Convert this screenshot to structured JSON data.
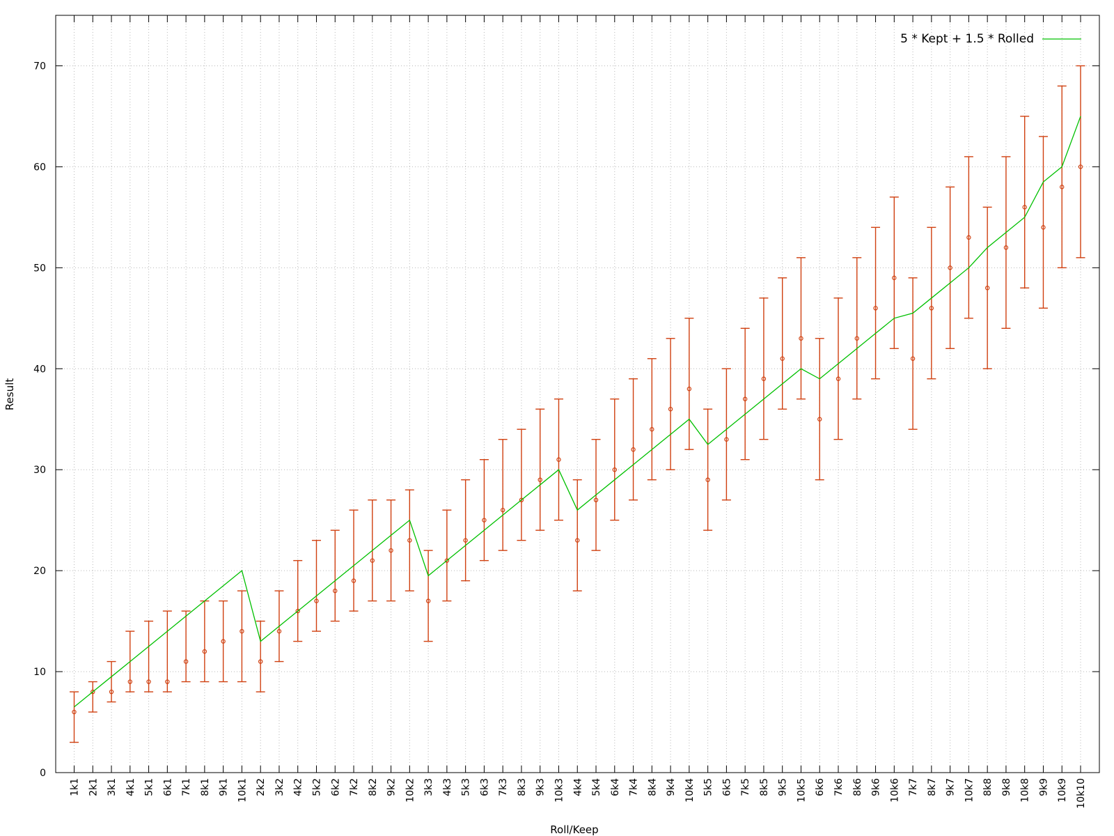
{
  "chart_data": {
    "type": "line",
    "xlabel": "Roll/Keep",
    "ylabel": "Result",
    "ylim": [
      0,
      75
    ],
    "yticks": [
      0,
      10,
      20,
      30,
      40,
      50,
      60,
      70
    ],
    "grid": true,
    "legend_position": "top-right",
    "categories": [
      "1k1",
      "2k1",
      "3k1",
      "4k1",
      "5k1",
      "6k1",
      "7k1",
      "8k1",
      "9k1",
      "10k1",
      "2k2",
      "3k2",
      "4k2",
      "5k2",
      "6k2",
      "7k2",
      "8k2",
      "9k2",
      "10k2",
      "3k3",
      "4k3",
      "5k3",
      "6k3",
      "7k3",
      "8k3",
      "9k3",
      "10k3",
      "4k4",
      "5k4",
      "6k4",
      "7k4",
      "8k4",
      "9k4",
      "10k4",
      "5k5",
      "6k5",
      "7k5",
      "8k5",
      "9k5",
      "10k5",
      "6k6",
      "7k6",
      "8k6",
      "9k6",
      "10k6",
      "7k7",
      "8k7",
      "9k7",
      "10k7",
      "8k8",
      "9k8",
      "10k8",
      "9k9",
      "10k9",
      "10k10"
    ],
    "series": [
      {
        "name": "5 * Kept + 1.5 * Rolled",
        "kind": "line",
        "color": "#00c000",
        "values": [
          6.5,
          8,
          9.5,
          11,
          12.5,
          14,
          15.5,
          17,
          18.5,
          20,
          13,
          14.5,
          16,
          17.5,
          19,
          20.5,
          22,
          23.5,
          25,
          19.5,
          21,
          22.5,
          24,
          25.5,
          27,
          28.5,
          30,
          26,
          27.5,
          29,
          30.5,
          32,
          33.5,
          35,
          32.5,
          34,
          35.5,
          37,
          38.5,
          40,
          39,
          40.5,
          42,
          43.5,
          45,
          45.5,
          47,
          48.5,
          50,
          52,
          53.5,
          55,
          58.5,
          60,
          65
        ]
      },
      {
        "kind": "errorbars",
        "color": "#d04010",
        "values": [
          6,
          8,
          8,
          9,
          9,
          9,
          11,
          12,
          13,
          14,
          11,
          14,
          16,
          17,
          18,
          19,
          21,
          22,
          23,
          17,
          21,
          23,
          25,
          26,
          27,
          29,
          31,
          23,
          27,
          30,
          32,
          34,
          36,
          38,
          29,
          33,
          37,
          39,
          41,
          43,
          35,
          39,
          43,
          46,
          49,
          41,
          46,
          50,
          53,
          48,
          52,
          56,
          54,
          58,
          60
        ],
        "low": [
          3,
          6,
          7,
          8,
          8,
          8,
          9,
          9,
          9,
          9,
          8,
          11,
          13,
          14,
          15,
          16,
          17,
          17,
          18,
          13,
          17,
          19,
          21,
          22,
          23,
          24,
          25,
          18,
          22,
          25,
          27,
          29,
          30,
          32,
          24,
          27,
          31,
          33,
          36,
          37,
          29,
          33,
          37,
          39,
          42,
          34,
          39,
          42,
          45,
          40,
          44,
          48,
          46,
          50,
          51
        ],
        "high": [
          8,
          9,
          11,
          14,
          15,
          16,
          16,
          17,
          17,
          18,
          15,
          18,
          21,
          23,
          24,
          26,
          27,
          27,
          28,
          22,
          26,
          29,
          31,
          33,
          34,
          36,
          37,
          29,
          33,
          37,
          39,
          41,
          43,
          45,
          36,
          40,
          44,
          47,
          49,
          51,
          43,
          47,
          51,
          54,
          57,
          49,
          54,
          58,
          61,
          56,
          61,
          65,
          63,
          68,
          70
        ]
      }
    ]
  }
}
